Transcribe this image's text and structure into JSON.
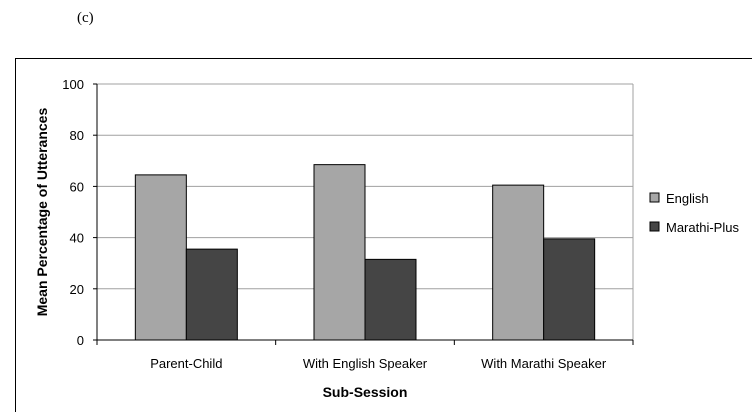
{
  "panel_label": "(c)",
  "colors": {
    "english": "#a6a6a6",
    "marathi_plus": "#454545",
    "gridline": "#a0a0a0",
    "bar_stroke": "#000000"
  },
  "chart_data": {
    "type": "bar",
    "title": "",
    "xlabel": "Sub-Session",
    "ylabel": "Mean Percentage of Utterances",
    "ylim": [
      0,
      100
    ],
    "yticks": [
      0,
      20,
      40,
      60,
      80,
      100
    ],
    "grid": true,
    "legend_position": "right",
    "categories": [
      "Parent-Child",
      "With English Speaker",
      "With Marathi Speaker"
    ],
    "series": [
      {
        "name": "English",
        "values": [
          64.5,
          68.5,
          60.5
        ]
      },
      {
        "name": "Marathi-Plus",
        "values": [
          35.5,
          31.5,
          39.5
        ]
      }
    ]
  }
}
